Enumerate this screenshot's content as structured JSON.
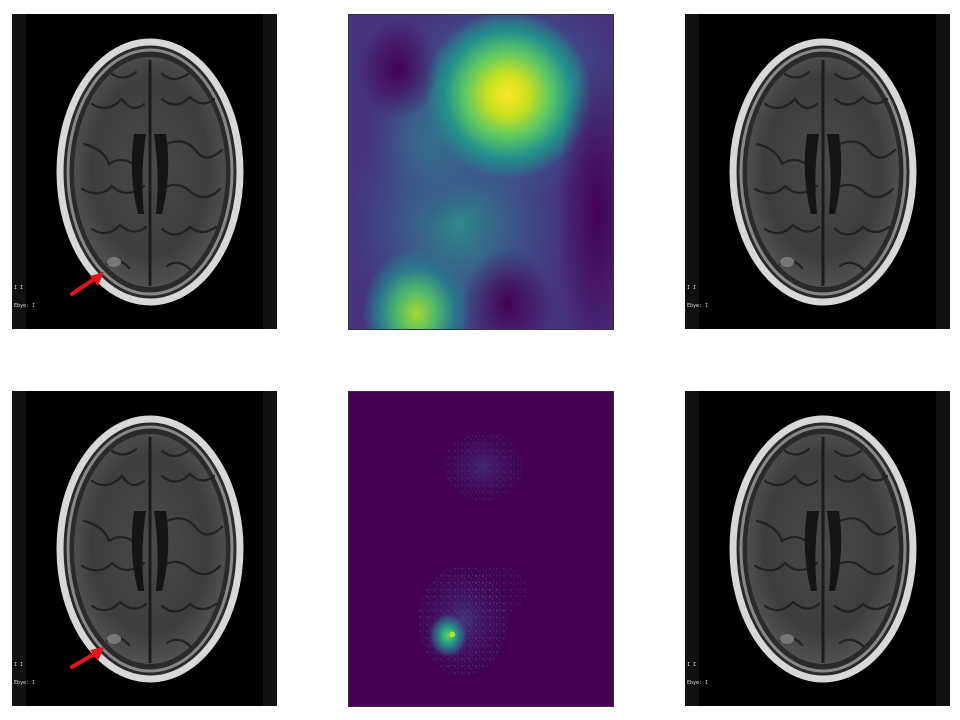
{
  "figure": {
    "background_color": "#ffffff",
    "rows": [
      {
        "panels": [
          {
            "kind": "mri-scan",
            "overlay_text": [
              "I I",
              "Ebye: I"
            ],
            "arrow": true,
            "arrow_color": "#e8141b"
          },
          {
            "kind": "heatmap-smooth",
            "colormap": "viridis"
          },
          {
            "kind": "mri-scan",
            "overlay_text": [
              "I I",
              "Ebye: I"
            ],
            "arrow": false
          }
        ]
      },
      {
        "panels": [
          {
            "kind": "mri-scan",
            "overlay_text": [
              "I I",
              "Ebye: I"
            ],
            "arrow": true,
            "arrow_color": "#e8141b"
          },
          {
            "kind": "heatmap-sparse",
            "colormap": "viridis"
          },
          {
            "kind": "mri-scan",
            "overlay_text": [
              "I I",
              "Ebye: I"
            ],
            "arrow": false
          }
        ]
      }
    ],
    "colors": {
      "viridis_low": "#440154",
      "viridis_mid": "#21918c",
      "viridis_high": "#fde725",
      "scan_background": "#000000"
    }
  }
}
